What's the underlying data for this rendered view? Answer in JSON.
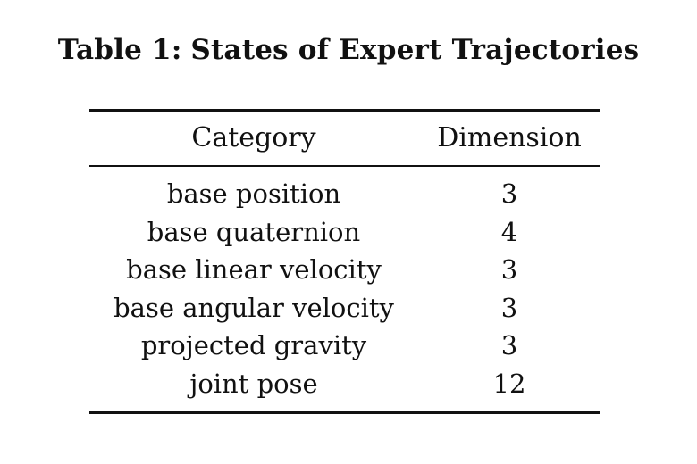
{
  "caption": {
    "label": "Table 1:",
    "title": "States of Expert Trajectories"
  },
  "table": {
    "headers": [
      "Category",
      "Dimension"
    ],
    "rows": [
      {
        "category": "base position",
        "dimension": "3"
      },
      {
        "category": "base quaternion",
        "dimension": "4"
      },
      {
        "category": "base linear velocity",
        "dimension": "3"
      },
      {
        "category": "base angular velocity",
        "dimension": "3"
      },
      {
        "category": "projected gravity",
        "dimension": "3"
      },
      {
        "category": "joint pose",
        "dimension": "12"
      }
    ]
  }
}
